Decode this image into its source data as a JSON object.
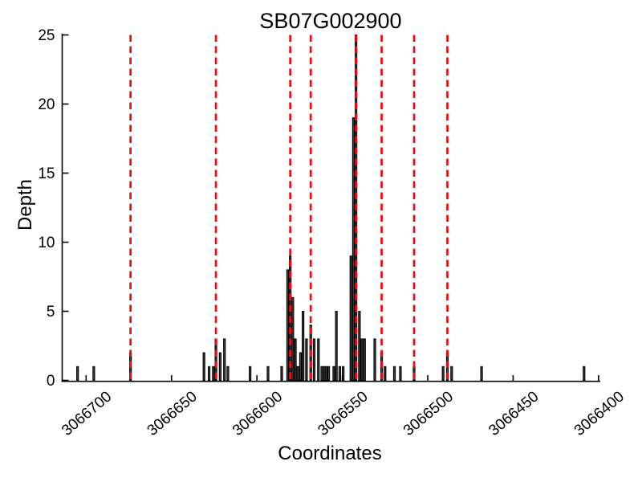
{
  "title": "SB07G002900",
  "x_label": "Coordinates",
  "y_label": "Depth",
  "chart_data": {
    "type": "bar",
    "title": "SB07G002900",
    "xlabel": "Coordinates",
    "ylabel": "Depth",
    "x_reversed": true,
    "xlim": [
      3066714,
      3066399
    ],
    "ylim": [
      0,
      25
    ],
    "x_ticks": [
      3066700,
      3066650,
      3066600,
      3066550,
      3066500,
      3066450,
      3066400
    ],
    "y_ticks": [
      0,
      5,
      10,
      15,
      20,
      25
    ],
    "grid": false,
    "bars": [
      [
        3066705,
        1
      ],
      [
        3066695.5,
        1
      ],
      [
        3066674,
        2
      ],
      [
        3066631,
        2
      ],
      [
        3066628,
        1
      ],
      [
        3066625.5,
        1
      ],
      [
        3066624,
        3
      ],
      [
        3066621.5,
        2
      ],
      [
        3066619,
        3
      ],
      [
        3066617,
        1
      ],
      [
        3066604,
        1
      ],
      [
        3066593.5,
        1
      ],
      [
        3066585.5,
        1
      ],
      [
        3066582,
        8
      ],
      [
        3066580.5,
        9
      ],
      [
        3066579,
        6
      ],
      [
        3066577.5,
        3
      ],
      [
        3066576,
        1
      ],
      [
        3066574.5,
        2
      ],
      [
        3066573,
        5
      ],
      [
        3066571,
        3
      ],
      [
        3066568.5,
        4
      ],
      [
        3066566.5,
        3
      ],
      [
        3066564,
        3
      ],
      [
        3066562,
        1
      ],
      [
        3066560.5,
        1
      ],
      [
        3066559.5,
        1
      ],
      [
        3066558,
        1
      ],
      [
        3066555,
        1
      ],
      [
        3066553.5,
        5
      ],
      [
        3066551.5,
        1
      ],
      [
        3066549.5,
        1
      ],
      [
        3066545,
        9
      ],
      [
        3066543.5,
        19
      ],
      [
        3066542,
        25
      ],
      [
        3066540,
        5
      ],
      [
        3066538.5,
        3
      ],
      [
        3066537,
        3
      ],
      [
        3066531,
        3
      ],
      [
        3066527,
        2
      ],
      [
        3066525,
        1
      ],
      [
        3066519.5,
        1
      ],
      [
        3066516,
        1
      ],
      [
        3066508,
        1
      ],
      [
        3066491,
        1
      ],
      [
        3066488.5,
        2
      ],
      [
        3066486,
        1
      ],
      [
        3066468.5,
        1
      ],
      [
        3066408.5,
        1
      ]
    ],
    "vlines": {
      "style": "dashed",
      "color": "#f30b0b",
      "coords": [
        3066674,
        3066624,
        3066580.5,
        3066568.5,
        3066542,
        3066527,
        3066508,
        3066488.5
      ]
    },
    "colors": {
      "bar_fill": "#3f3f3f",
      "bar_edge": "#000000",
      "axis": "#000000",
      "background": "#ffffff"
    }
  }
}
